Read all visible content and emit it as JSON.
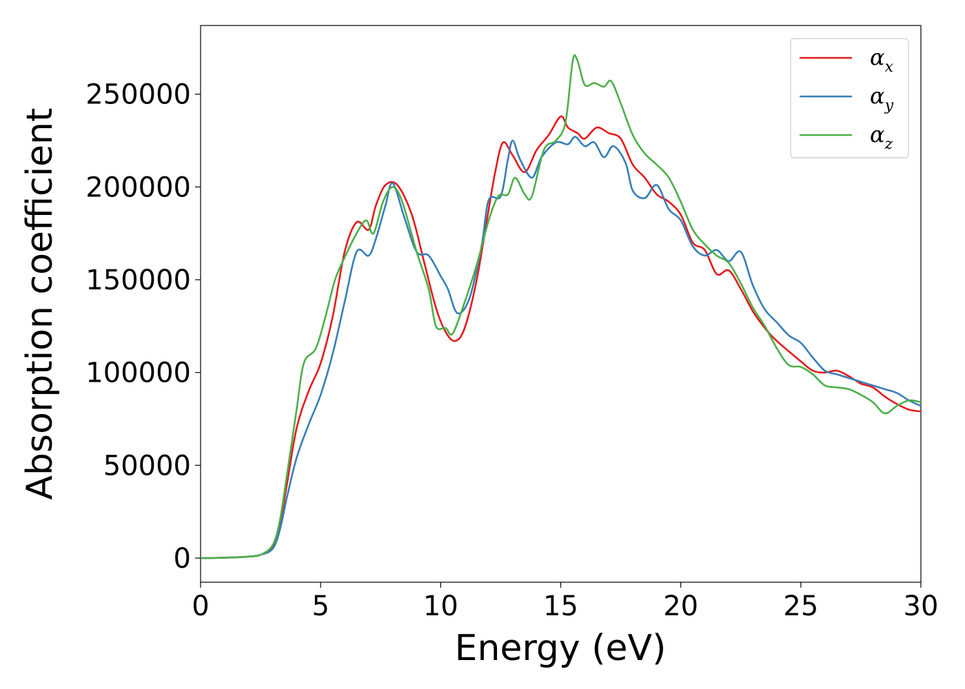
{
  "chart_data": {
    "type": "line",
    "title": "",
    "xlabel": "Energy (eV)",
    "ylabel": "Absorption coefficient",
    "xlim": [
      0,
      30
    ],
    "ylim": [
      -13000,
      287000
    ],
    "x_ticks": [
      "0",
      "5",
      "10",
      "15",
      "20",
      "25",
      "30"
    ],
    "y_ticks": [
      "0",
      "50000",
      "100000",
      "150000",
      "200000",
      "250000"
    ],
    "grid": false,
    "legend_position": "top-right",
    "series": [
      {
        "name": "α",
        "subscript": "x",
        "color": "#e41a1c",
        "points": [
          [
            0,
            0
          ],
          [
            1,
            200
          ],
          [
            2,
            800
          ],
          [
            2.5,
            1800
          ],
          [
            3,
            6000
          ],
          [
            3.3,
            18000
          ],
          [
            3.6,
            40000
          ],
          [
            4,
            70000
          ],
          [
            4.5,
            90000
          ],
          [
            5,
            105000
          ],
          [
            5.5,
            130000
          ],
          [
            6,
            165000
          ],
          [
            6.5,
            181000
          ],
          [
            7,
            177000
          ],
          [
            7.3,
            190000
          ],
          [
            7.7,
            201000
          ],
          [
            8.2,
            201000
          ],
          [
            8.8,
            185000
          ],
          [
            9.3,
            160000
          ],
          [
            9.8,
            135000
          ],
          [
            10.2,
            122000
          ],
          [
            10.6,
            117000
          ],
          [
            11,
            124000
          ],
          [
            11.5,
            150000
          ],
          [
            12,
            188000
          ],
          [
            12.3,
            210000
          ],
          [
            12.6,
            224000
          ],
          [
            13,
            217000
          ],
          [
            13.5,
            208000
          ],
          [
            14,
            220000
          ],
          [
            14.5,
            228000
          ],
          [
            15,
            238000
          ],
          [
            15.3,
            232000
          ],
          [
            15.7,
            229000
          ],
          [
            16,
            226000
          ],
          [
            16.5,
            232000
          ],
          [
            17,
            229000
          ],
          [
            17.5,
            226000
          ],
          [
            18,
            212000
          ],
          [
            18.5,
            205000
          ],
          [
            19,
            196000
          ],
          [
            19.5,
            192000
          ],
          [
            20,
            185000
          ],
          [
            20.5,
            170000
          ],
          [
            21,
            166000
          ],
          [
            21.5,
            153000
          ],
          [
            22,
            155000
          ],
          [
            22.5,
            145000
          ],
          [
            23,
            133000
          ],
          [
            23.5,
            124000
          ],
          [
            24,
            117000
          ],
          [
            25,
            106000
          ],
          [
            25.5,
            101000
          ],
          [
            26,
            100000
          ],
          [
            26.5,
            101000
          ],
          [
            27,
            98000
          ],
          [
            27.5,
            94000
          ],
          [
            28,
            92000
          ],
          [
            28.5,
            87000
          ],
          [
            29,
            83000
          ],
          [
            29.5,
            80000
          ],
          [
            30,
            79000
          ]
        ]
      },
      {
        "name": "α",
        "subscript": "y",
        "color": "#377eb8",
        "points": [
          [
            0,
            0
          ],
          [
            1,
            200
          ],
          [
            2,
            800
          ],
          [
            2.5,
            1800
          ],
          [
            3,
            5000
          ],
          [
            3.3,
            15000
          ],
          [
            3.6,
            33000
          ],
          [
            4,
            54000
          ],
          [
            4.5,
            72000
          ],
          [
            5,
            88000
          ],
          [
            5.5,
            110000
          ],
          [
            6,
            138000
          ],
          [
            6.5,
            165000
          ],
          [
            7,
            163000
          ],
          [
            7.3,
            172000
          ],
          [
            7.7,
            190000
          ],
          [
            8,
            202000
          ],
          [
            8.5,
            183000
          ],
          [
            9,
            165000
          ],
          [
            9.5,
            163000
          ],
          [
            10,
            152000
          ],
          [
            10.3,
            145000
          ],
          [
            10.7,
            132000
          ],
          [
            11.2,
            140000
          ],
          [
            11.7,
            168000
          ],
          [
            12,
            193000
          ],
          [
            12.5,
            195000
          ],
          [
            12.8,
            215000
          ],
          [
            13,
            225000
          ],
          [
            13.3,
            215000
          ],
          [
            13.8,
            205000
          ],
          [
            14.2,
            216000
          ],
          [
            14.8,
            224000
          ],
          [
            15.3,
            223000
          ],
          [
            15.6,
            227000
          ],
          [
            16,
            222000
          ],
          [
            16.4,
            224000
          ],
          [
            16.8,
            216000
          ],
          [
            17.2,
            222000
          ],
          [
            17.7,
            213000
          ],
          [
            18,
            198000
          ],
          [
            18.5,
            194000
          ],
          [
            19,
            201000
          ],
          [
            19.5,
            188000
          ],
          [
            20,
            182000
          ],
          [
            20.5,
            168000
          ],
          [
            21,
            163000
          ],
          [
            21.5,
            166000
          ],
          [
            22,
            160000
          ],
          [
            22.5,
            165000
          ],
          [
            23,
            147000
          ],
          [
            23.5,
            134000
          ],
          [
            24,
            127000
          ],
          [
            24.5,
            120000
          ],
          [
            25,
            116000
          ],
          [
            25.5,
            108000
          ],
          [
            26,
            101000
          ],
          [
            26.5,
            99000
          ],
          [
            27,
            97000
          ],
          [
            27.5,
            95000
          ],
          [
            28,
            93000
          ],
          [
            28.5,
            91000
          ],
          [
            29,
            89000
          ],
          [
            29.5,
            85000
          ],
          [
            30,
            82000
          ]
        ]
      },
      {
        "name": "α",
        "subscript": "z",
        "color": "#4daf4a",
        "points": [
          [
            0,
            0
          ],
          [
            1,
            200
          ],
          [
            2,
            800
          ],
          [
            2.5,
            1800
          ],
          [
            3,
            7000
          ],
          [
            3.3,
            20000
          ],
          [
            3.6,
            45000
          ],
          [
            4,
            80000
          ],
          [
            4.3,
            105000
          ],
          [
            4.8,
            113000
          ],
          [
            5.2,
            130000
          ],
          [
            5.6,
            150000
          ],
          [
            6,
            162000
          ],
          [
            6.5,
            175000
          ],
          [
            6.9,
            182000
          ],
          [
            7.2,
            175000
          ],
          [
            7.6,
            192000
          ],
          [
            8,
            200000
          ],
          [
            8.4,
            192000
          ],
          [
            9,
            165000
          ],
          [
            9.5,
            145000
          ],
          [
            9.8,
            125000
          ],
          [
            10.2,
            124000
          ],
          [
            10.5,
            121000
          ],
          [
            11,
            138000
          ],
          [
            11.5,
            158000
          ],
          [
            12,
            182000
          ],
          [
            12.4,
            195000
          ],
          [
            12.8,
            196000
          ],
          [
            13.1,
            205000
          ],
          [
            13.5,
            196000
          ],
          [
            13.8,
            195000
          ],
          [
            14.3,
            220000
          ],
          [
            14.8,
            225000
          ],
          [
            15.2,
            235000
          ],
          [
            15.5,
            268000
          ],
          [
            15.7,
            268000
          ],
          [
            16,
            255000
          ],
          [
            16.4,
            256000
          ],
          [
            16.8,
            254000
          ],
          [
            17.1,
            257000
          ],
          [
            17.5,
            245000
          ],
          [
            18,
            228000
          ],
          [
            18.5,
            218000
          ],
          [
            19,
            212000
          ],
          [
            19.5,
            205000
          ],
          [
            20,
            192000
          ],
          [
            20.5,
            177000
          ],
          [
            21,
            169000
          ],
          [
            21.5,
            163000
          ],
          [
            22,
            159000
          ],
          [
            22.5,
            148000
          ],
          [
            23,
            135000
          ],
          [
            23.5,
            125000
          ],
          [
            24,
            113000
          ],
          [
            24.5,
            104000
          ],
          [
            25,
            103000
          ],
          [
            25.5,
            99000
          ],
          [
            26,
            93000
          ],
          [
            26.5,
            92000
          ],
          [
            27,
            91000
          ],
          [
            27.5,
            88000
          ],
          [
            28,
            84000
          ],
          [
            28.5,
            78000
          ],
          [
            29,
            82000
          ],
          [
            29.5,
            85000
          ],
          [
            30,
            84000
          ]
        ]
      }
    ]
  }
}
